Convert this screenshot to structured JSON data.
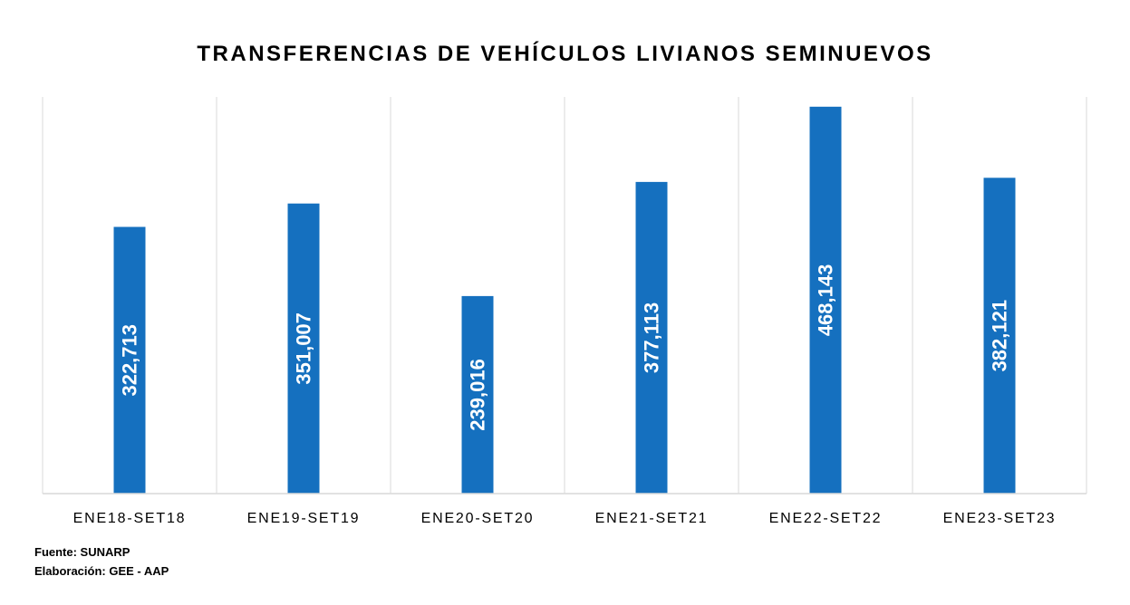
{
  "chart_data": {
    "type": "bar",
    "title": "TRANSFERENCIAS DE VEHÍCULOS LIVIANOS SEMINUEVOS",
    "categories": [
      "ENE18-SET18",
      "ENE19-SET19",
      "ENE20-SET20",
      "ENE21-SET21",
      "ENE22-SET22",
      "ENE23-SET23"
    ],
    "values": [
      322713,
      351007,
      239016,
      377113,
      468143,
      382121
    ],
    "data_labels": [
      "322,713",
      "351,007",
      "239,016",
      "377,113",
      "468,143",
      "382,121"
    ],
    "ylim": [
      0,
      480000
    ],
    "bar_color": "#1570BF",
    "label_color": "#FFFFFF",
    "grid": "vertical separators",
    "legend": "none"
  },
  "footer": {
    "source": "Fuente: SUNARP",
    "credit": "Elaboración: GEE - AAP"
  }
}
